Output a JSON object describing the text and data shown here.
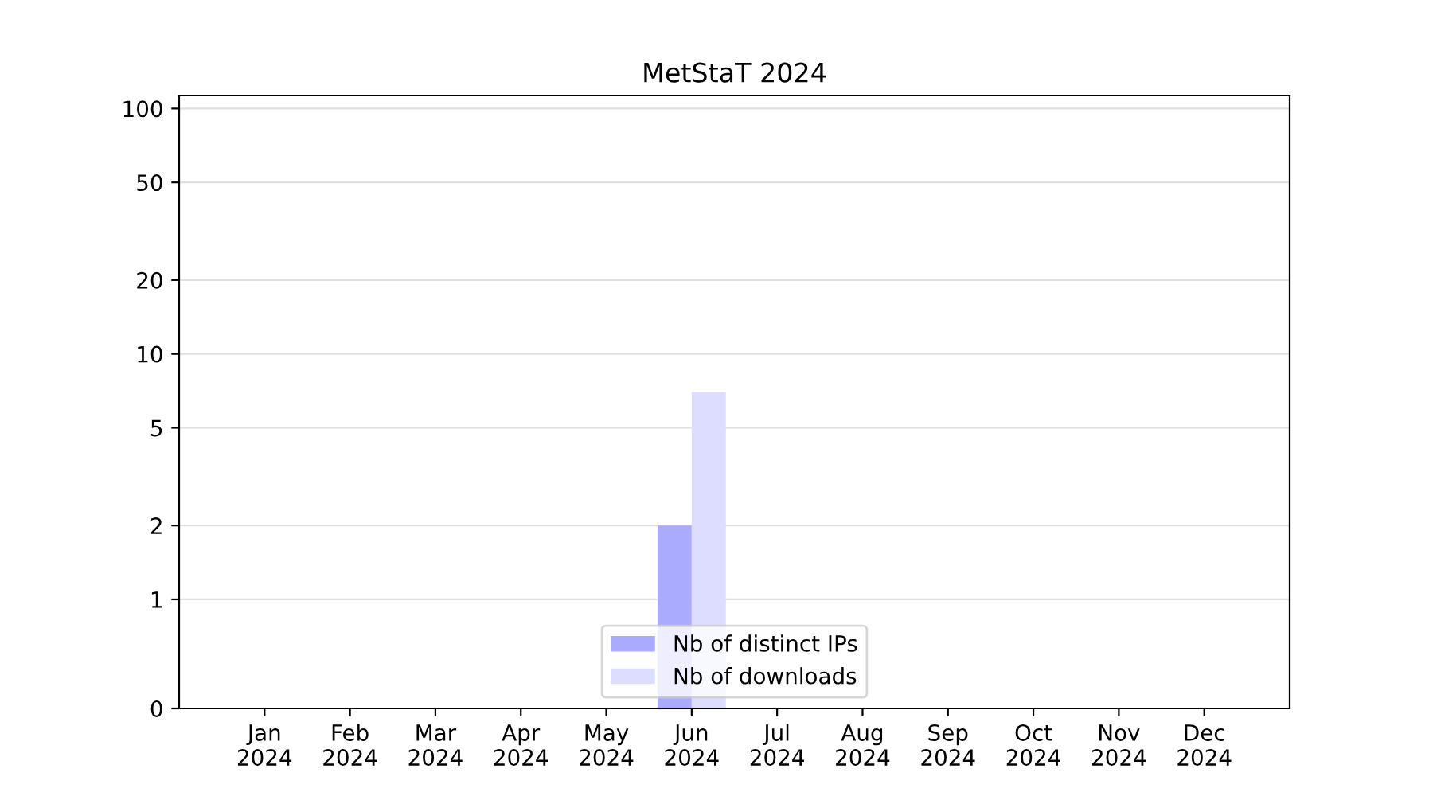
{
  "chart_data": {
    "type": "bar",
    "title": "MetStaT 2024",
    "categories": [
      "Jan\n2024",
      "Feb\n2024",
      "Mar\n2024",
      "Apr\n2024",
      "May\n2024",
      "Jun\n2024",
      "Jul\n2024",
      "Aug\n2024",
      "Sep\n2024",
      "Oct\n2024",
      "Nov\n2024",
      "Dec\n2024"
    ],
    "series": [
      {
        "name": "Nb of distinct IPs",
        "color": "#aaaaff",
        "values": [
          0,
          0,
          0,
          0,
          0,
          2,
          0,
          0,
          0,
          0,
          0,
          0
        ]
      },
      {
        "name": "Nb of downloads",
        "color": "#ddddff",
        "values": [
          0,
          0,
          0,
          0,
          0,
          7,
          0,
          0,
          0,
          0,
          0,
          0
        ]
      }
    ],
    "log": "y",
    "ylim": [
      0,
      113
    ],
    "yticks": [
      0,
      1,
      2,
      5,
      10,
      20,
      50,
      100
    ],
    "grid": "y",
    "legend": "bottom"
  }
}
